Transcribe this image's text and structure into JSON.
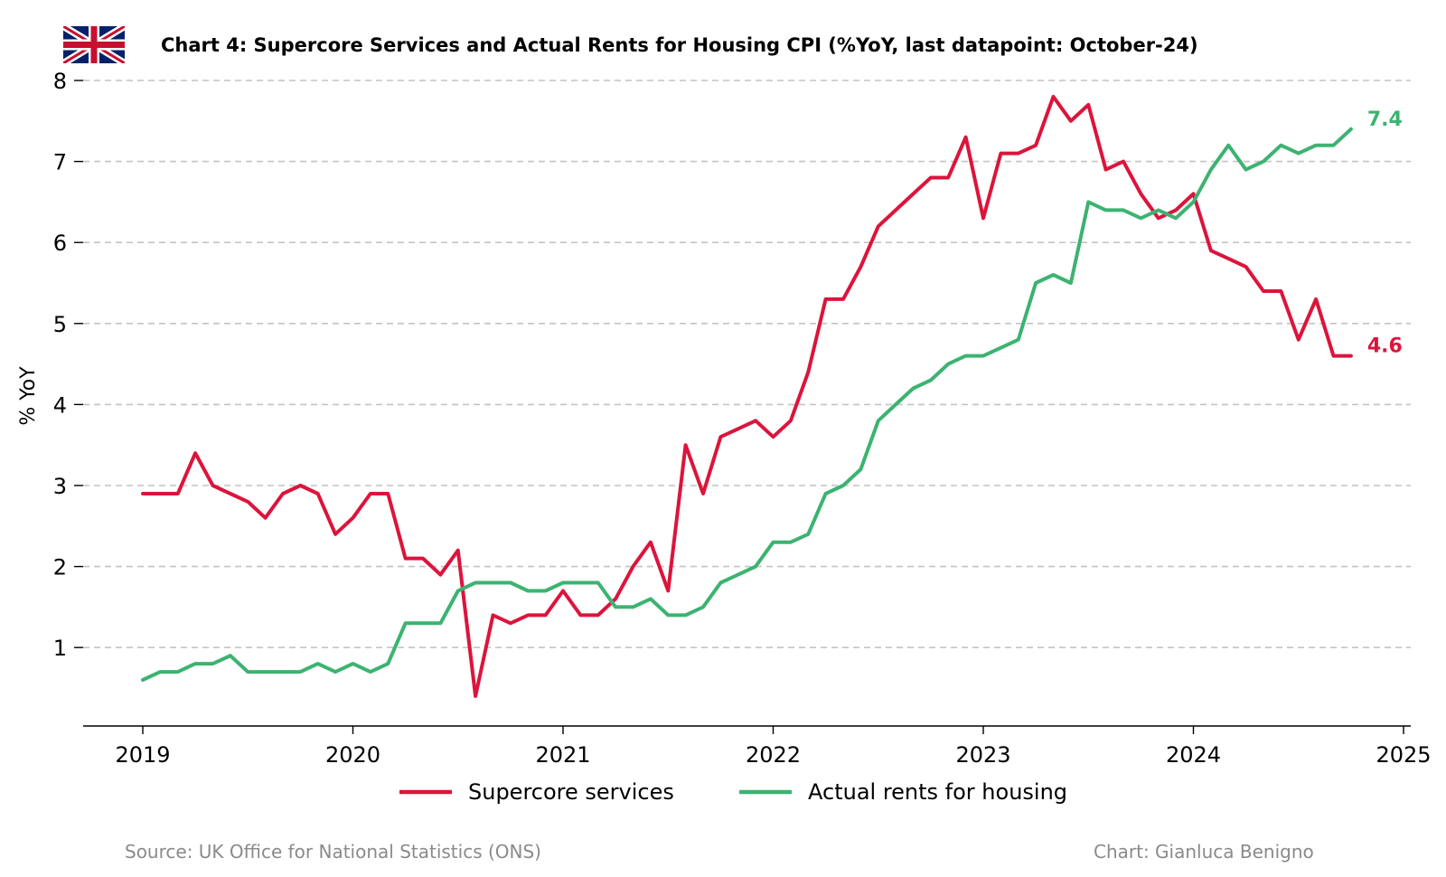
{
  "chart_data": {
    "type": "line",
    "title": "Chart 4: Supercore Services and Actual Rents for Housing CPI (%YoY, last datapoint: October-24)",
    "ylabel": "% YoY",
    "xlabel": "",
    "xlim": [
      "2018-09",
      "2025-01"
    ],
    "ylim": [
      0,
      8
    ],
    "yticks": [
      "1",
      "2",
      "3",
      "4",
      "5",
      "6",
      "7",
      "8"
    ],
    "xticks": [
      "2019",
      "2020",
      "2021",
      "2022",
      "2023",
      "2024",
      "2025"
    ],
    "grid": "horizontal dashed",
    "legend_position": "bottom-center",
    "x": [
      "2019-01",
      "2019-02",
      "2019-03",
      "2019-04",
      "2019-05",
      "2019-06",
      "2019-07",
      "2019-08",
      "2019-09",
      "2019-10",
      "2019-11",
      "2019-12",
      "2020-01",
      "2020-02",
      "2020-03",
      "2020-04",
      "2020-05",
      "2020-06",
      "2020-07",
      "2020-08",
      "2020-09",
      "2020-10",
      "2020-11",
      "2020-12",
      "2021-01",
      "2021-02",
      "2021-03",
      "2021-04",
      "2021-05",
      "2021-06",
      "2021-07",
      "2021-08",
      "2021-09",
      "2021-10",
      "2021-11",
      "2021-12",
      "2022-01",
      "2022-02",
      "2022-03",
      "2022-04",
      "2022-05",
      "2022-06",
      "2022-07",
      "2022-08",
      "2022-09",
      "2022-10",
      "2022-11",
      "2022-12",
      "2023-01",
      "2023-02",
      "2023-03",
      "2023-04",
      "2023-05",
      "2023-06",
      "2023-07",
      "2023-08",
      "2023-09",
      "2023-10",
      "2023-11",
      "2023-12",
      "2024-01",
      "2024-02",
      "2024-03",
      "2024-04",
      "2024-05",
      "2024-06",
      "2024-07",
      "2024-08",
      "2024-09",
      "2024-10"
    ],
    "series": [
      {
        "name": "Supercore services",
        "color": "#dc143c",
        "end_label": "4.6",
        "values": [
          2.9,
          2.9,
          2.9,
          3.4,
          3.0,
          2.9,
          2.8,
          2.6,
          2.9,
          3.0,
          2.9,
          2.4,
          2.6,
          2.9,
          2.9,
          2.1,
          2.1,
          1.9,
          2.2,
          0.4,
          1.4,
          1.3,
          1.4,
          1.4,
          1.7,
          1.4,
          1.4,
          1.6,
          2.0,
          2.3,
          1.7,
          3.5,
          2.9,
          3.6,
          3.7,
          3.8,
          3.6,
          3.8,
          4.4,
          5.3,
          5.3,
          5.7,
          6.2,
          6.4,
          6.6,
          6.8,
          6.8,
          7.3,
          6.3,
          7.1,
          7.1,
          7.2,
          7.8,
          7.5,
          7.7,
          6.9,
          7.0,
          6.6,
          6.3,
          6.4,
          6.6,
          5.9,
          5.8,
          5.7,
          5.4,
          5.4,
          4.8,
          5.3,
          4.6,
          4.6
        ]
      },
      {
        "name": "Actual rents for housing",
        "color": "#3cb371",
        "end_label": "7.4",
        "values": [
          0.6,
          0.7,
          0.7,
          0.8,
          0.8,
          0.9,
          0.7,
          0.7,
          0.7,
          0.7,
          0.8,
          0.7,
          0.8,
          0.7,
          0.8,
          1.3,
          1.3,
          1.3,
          1.7,
          1.8,
          1.8,
          1.8,
          1.7,
          1.7,
          1.8,
          1.8,
          1.8,
          1.5,
          1.5,
          1.6,
          1.4,
          1.4,
          1.5,
          1.8,
          1.9,
          2.0,
          2.3,
          2.3,
          2.4,
          2.9,
          3.0,
          3.2,
          3.8,
          4.0,
          4.2,
          4.3,
          4.5,
          4.6,
          4.6,
          4.7,
          4.8,
          5.5,
          5.6,
          5.5,
          6.5,
          6.4,
          6.4,
          6.3,
          6.4,
          6.3,
          6.5,
          6.9,
          7.2,
          6.9,
          7.0,
          7.2,
          7.1,
          7.2,
          7.2,
          7.4
        ]
      }
    ],
    "source": "Source: UK Office for National Statistics (ONS)",
    "credit": "Chart: Gianluca Benigno",
    "flag_icon": "uk-flag-icon"
  }
}
